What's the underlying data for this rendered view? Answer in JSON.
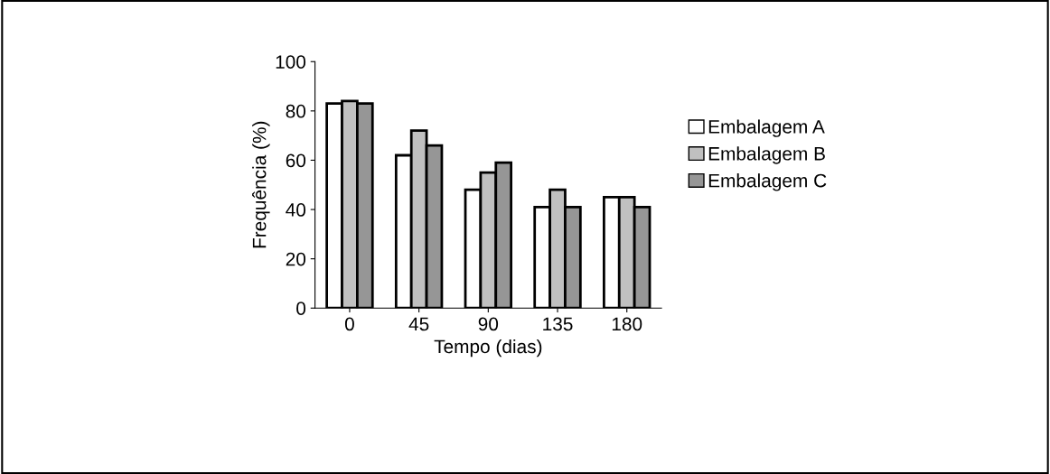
{
  "chart_data": {
    "type": "bar",
    "xlabel": "Tempo (dias)",
    "ylabel": "Frequência (%)",
    "categories": [
      "0",
      "45",
      "90",
      "135",
      "180"
    ],
    "series": [
      {
        "name": "Embalagem A",
        "color": "#ffffff",
        "values": [
          83,
          62,
          48,
          41,
          45
        ]
      },
      {
        "name": "Embalagem B",
        "color": "#c0c0c0",
        "values": [
          84,
          72,
          55,
          48,
          45
        ]
      },
      {
        "name": "Embalagem C",
        "color": "#969696",
        "values": [
          83,
          66,
          59,
          41,
          41
        ]
      }
    ],
    "ylim": [
      0,
      100
    ],
    "yticks": [
      0,
      20,
      40,
      60,
      80,
      100
    ],
    "grid": false,
    "legend": "right"
  }
}
